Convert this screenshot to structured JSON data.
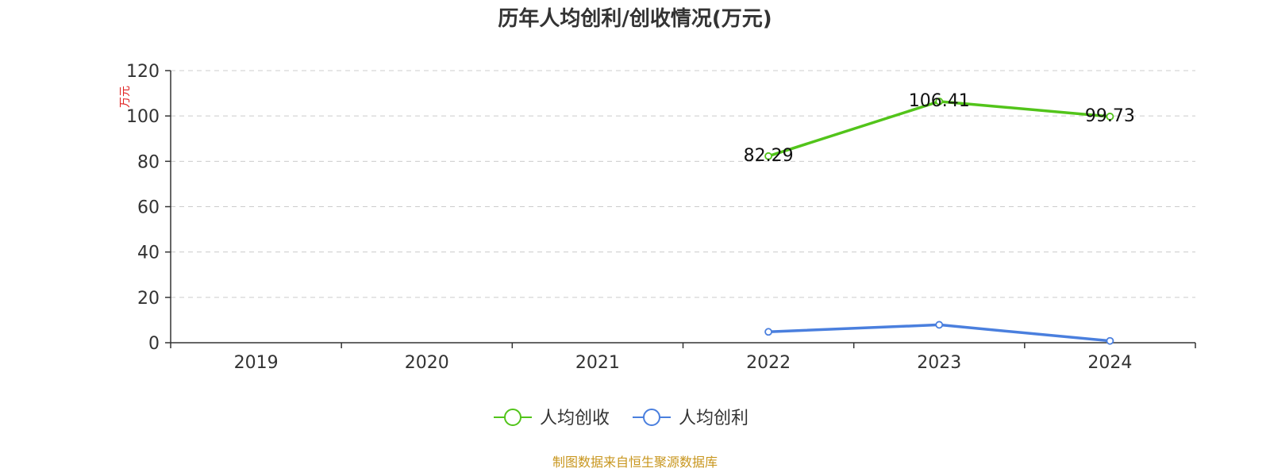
{
  "footer": {
    "source": "制图数据来自恒生聚源数据库"
  },
  "chart_data": {
    "type": "line",
    "title": "历年人均创利/创收情况(万元)",
    "xlabel": "",
    "ylabel": "万元",
    "categories": [
      "2019",
      "2020",
      "2021",
      "2022",
      "2023",
      "2024"
    ],
    "ylim": [
      0,
      120
    ],
    "yticks": [
      0,
      20,
      40,
      60,
      80,
      100,
      120
    ],
    "grid": true,
    "legend_position": "bottom-center",
    "series": [
      {
        "name": "人均创收",
        "color": "#52c41a",
        "values": [
          null,
          null,
          null,
          82.29,
          106.41,
          99.73
        ],
        "labels": [
          "",
          "",
          "",
          "82.29",
          "106.41",
          "99.73"
        ]
      },
      {
        "name": "人均创利",
        "color": "#4a7fde",
        "values": [
          null,
          null,
          null,
          4.8,
          7.9,
          0.8
        ],
        "labels": [
          "",
          "",
          "",
          "",
          "",
          ""
        ]
      }
    ]
  }
}
